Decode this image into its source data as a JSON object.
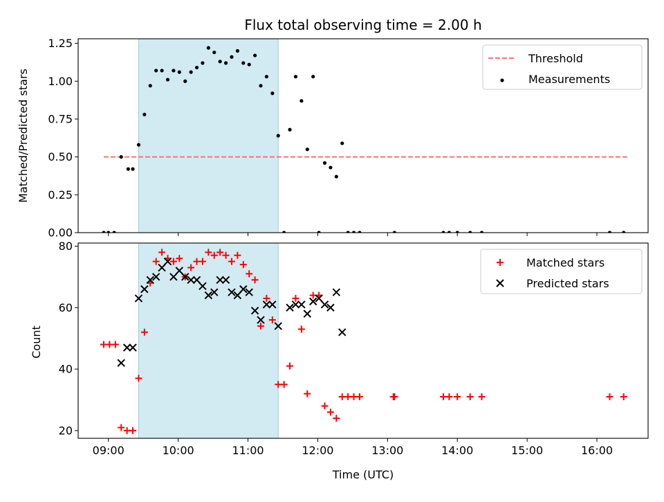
{
  "title": "Flux total observing time = 2.00 h",
  "chart_data": [
    {
      "type": "scatter",
      "ylabel": "Matched/Predicted stars",
      "xlabel": "",
      "xlim": [
        "08:34",
        "16:44"
      ],
      "ylim": [
        0,
        1.28
      ],
      "yticks": [
        0.0,
        0.25,
        0.5,
        0.75,
        1.0,
        1.25
      ],
      "ytick_labels": [
        "0.00",
        "0.25",
        "0.50",
        "0.75",
        "1.00",
        "1.25"
      ],
      "highlight_window": [
        "09:26",
        "11:26"
      ],
      "threshold": {
        "name": "Threshold",
        "y": 0.5,
        "x_range": [
          "08:56",
          "16:26"
        ],
        "color": "#ff7070"
      },
      "legend_position": "top-right",
      "series": [
        {
          "name": "Measurements",
          "color": "#000000",
          "points": [
            [
              "08:56",
              0.0
            ],
            [
              "09:00",
              0.0
            ],
            [
              "09:05",
              0.0
            ],
            [
              "09:11",
              0.5
            ],
            [
              "09:17",
              0.42
            ],
            [
              "09:21",
              0.42
            ],
            [
              "09:26",
              0.58
            ],
            [
              "09:31",
              0.78
            ],
            [
              "09:36",
              0.97
            ],
            [
              "09:41",
              1.07
            ],
            [
              "09:46",
              1.07
            ],
            [
              "09:51",
              1.01
            ],
            [
              "09:56",
              1.07
            ],
            [
              "10:01",
              1.06
            ],
            [
              "10:06",
              1.0
            ],
            [
              "10:11",
              1.06
            ],
            [
              "10:16",
              1.09
            ],
            [
              "10:21",
              1.12
            ],
            [
              "10:26",
              1.22
            ],
            [
              "10:31",
              1.19
            ],
            [
              "10:36",
              1.13
            ],
            [
              "10:41",
              1.12
            ],
            [
              "10:46",
              1.16
            ],
            [
              "10:51",
              1.2
            ],
            [
              "10:56",
              1.12
            ],
            [
              "11:01",
              1.11
            ],
            [
              "11:06",
              1.17
            ],
            [
              "11:11",
              0.97
            ],
            [
              "11:16",
              1.03
            ],
            [
              "11:21",
              0.92
            ],
            [
              "11:26",
              0.64
            ],
            [
              "11:31",
              0.0
            ],
            [
              "11:36",
              0.68
            ],
            [
              "11:41",
              1.03
            ],
            [
              "11:46",
              0.87
            ],
            [
              "11:51",
              0.55
            ],
            [
              "11:56",
              1.03
            ],
            [
              "12:01",
              0.0
            ],
            [
              "12:06",
              0.46
            ],
            [
              "12:11",
              0.43
            ],
            [
              "12:16",
              0.37
            ],
            [
              "12:21",
              0.59
            ],
            [
              "12:26",
              0.0
            ],
            [
              "12:31",
              0.0
            ],
            [
              "12:36",
              0.0
            ],
            [
              "13:06",
              0.0
            ],
            [
              "13:48",
              0.0
            ],
            [
              "13:53",
              0.0
            ],
            [
              "14:00",
              0.0
            ],
            [
              "14:11",
              0.0
            ],
            [
              "14:21",
              0.0
            ],
            [
              "16:11",
              0.0
            ],
            [
              "16:23",
              0.0
            ]
          ]
        }
      ]
    },
    {
      "type": "scatter",
      "ylabel": "Count",
      "xlabel": "Time (UTC)",
      "xlim": [
        "08:34",
        "16:44"
      ],
      "ylim": [
        17.5,
        81
      ],
      "yticks": [
        20,
        40,
        60,
        80
      ],
      "ytick_labels": [
        "20",
        "40",
        "60",
        "80"
      ],
      "xticks": [
        "09:00",
        "10:00",
        "11:00",
        "12:00",
        "13:00",
        "14:00",
        "15:00",
        "16:00"
      ],
      "highlight_window": [
        "09:26",
        "11:26"
      ],
      "legend_position": "top-right",
      "series": [
        {
          "name": "Matched stars",
          "marker": "plus",
          "color": "#ff0000",
          "points": [
            [
              "08:56",
              48
            ],
            [
              "09:01",
              48
            ],
            [
              "09:06",
              48
            ],
            [
              "09:11",
              21
            ],
            [
              "09:16",
              20
            ],
            [
              "09:21",
              20
            ],
            [
              "09:26",
              37
            ],
            [
              "09:31",
              52
            ],
            [
              "09:36",
              68
            ],
            [
              "09:41",
              75
            ],
            [
              "09:46",
              78
            ],
            [
              "09:51",
              76
            ],
            [
              "09:56",
              75
            ],
            [
              "10:01",
              76
            ],
            [
              "10:06",
              70
            ],
            [
              "10:11",
              73
            ],
            [
              "10:16",
              75
            ],
            [
              "10:21",
              75
            ],
            [
              "10:26",
              78
            ],
            [
              "10:31",
              77
            ],
            [
              "10:36",
              78
            ],
            [
              "10:41",
              77
            ],
            [
              "10:46",
              75
            ],
            [
              "10:51",
              77
            ],
            [
              "10:56",
              74
            ],
            [
              "11:01",
              71
            ],
            [
              "11:06",
              69
            ],
            [
              "11:11",
              54
            ],
            [
              "11:16",
              63
            ],
            [
              "11:21",
              56
            ],
            [
              "11:26",
              35
            ],
            [
              "11:31",
              35
            ],
            [
              "11:36",
              41
            ],
            [
              "11:41",
              63
            ],
            [
              "11:46",
              53
            ],
            [
              "11:51",
              32
            ],
            [
              "11:56",
              64
            ],
            [
              "12:01",
              64
            ],
            [
              "12:06",
              28
            ],
            [
              "12:11",
              26
            ],
            [
              "12:16",
              24
            ],
            [
              "12:21",
              31
            ],
            [
              "12:26",
              31
            ],
            [
              "12:31",
              31
            ],
            [
              "12:36",
              31
            ],
            [
              "13:05",
              31
            ],
            [
              "13:06",
              31
            ],
            [
              "13:48",
              31
            ],
            [
              "13:53",
              31
            ],
            [
              "14:00",
              31
            ],
            [
              "14:11",
              31
            ],
            [
              "14:21",
              31
            ],
            [
              "16:11",
              31
            ],
            [
              "16:23",
              31
            ]
          ]
        },
        {
          "name": "Predicted stars",
          "marker": "x",
          "color": "#000000",
          "points": [
            [
              "09:11",
              42
            ],
            [
              "09:16",
              47
            ],
            [
              "09:21",
              47
            ],
            [
              "09:26",
              63
            ],
            [
              "09:31",
              66
            ],
            [
              "09:36",
              69
            ],
            [
              "09:41",
              70
            ],
            [
              "09:46",
              73
            ],
            [
              "09:51",
              75
            ],
            [
              "09:56",
              70
            ],
            [
              "10:01",
              72
            ],
            [
              "10:06",
              70
            ],
            [
              "10:11",
              69
            ],
            [
              "10:16",
              69
            ],
            [
              "10:21",
              67
            ],
            [
              "10:26",
              64
            ],
            [
              "10:31",
              65
            ],
            [
              "10:36",
              69
            ],
            [
              "10:41",
              69
            ],
            [
              "10:46",
              65
            ],
            [
              "10:51",
              64
            ],
            [
              "10:56",
              66
            ],
            [
              "11:01",
              65
            ],
            [
              "11:06",
              59
            ],
            [
              "11:11",
              56
            ],
            [
              "11:16",
              61
            ],
            [
              "11:21",
              61
            ],
            [
              "11:26",
              54
            ],
            [
              "11:36",
              60
            ],
            [
              "11:41",
              61
            ],
            [
              "11:46",
              61
            ],
            [
              "11:51",
              58
            ],
            [
              "11:56",
              62
            ],
            [
              "12:01",
              63
            ],
            [
              "12:06",
              61
            ],
            [
              "12:11",
              60
            ],
            [
              "12:16",
              65
            ],
            [
              "12:21",
              52
            ]
          ]
        }
      ]
    }
  ]
}
